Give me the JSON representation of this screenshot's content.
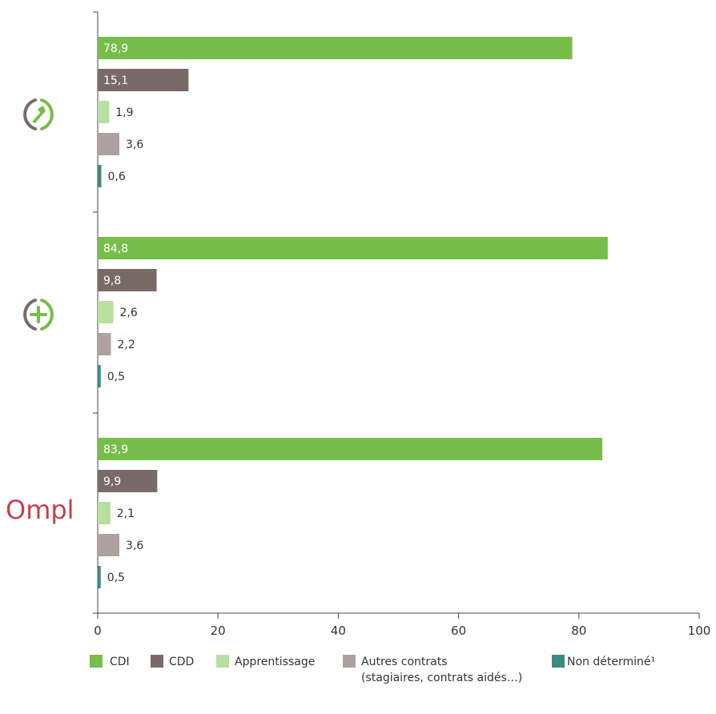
{
  "chart_data": {
    "type": "bar",
    "orientation": "horizontal",
    "groups": [
      {
        "icon": "tool-circle-icon"
      },
      {
        "icon": "plus-circle-icon"
      },
      {
        "icon": "ompl-logo",
        "logo_text": "Ompl"
      }
    ],
    "series": [
      {
        "name": "CDI",
        "color": "#76bd4a",
        "values": [
          78.9,
          84.8,
          83.9
        ],
        "labels": [
          "78,9",
          "84,8",
          "83,9"
        ]
      },
      {
        "name": "CDD",
        "color": "#7a6a67",
        "values": [
          15.1,
          9.8,
          9.9
        ],
        "labels": [
          "15,1",
          "9,8",
          "9,9"
        ]
      },
      {
        "name": "Apprentissage",
        "color": "#b7dfa0",
        "values": [
          1.9,
          2.6,
          2.1
        ],
        "labels": [
          "1,9",
          "2,6",
          "2,1"
        ]
      },
      {
        "name": "Autres contrats",
        "name_line2": "(stagiaires, contrats aidés…)",
        "color": "#ada19d",
        "values": [
          3.6,
          2.2,
          3.6
        ],
        "labels": [
          "3,6",
          "2,2",
          "3,6"
        ]
      },
      {
        "name": "Non déterminé¹",
        "color": "#3b8a7f",
        "values": [
          0.6,
          0.5,
          0.5
        ],
        "labels": [
          "0,6",
          "0,5",
          "0,5"
        ]
      }
    ],
    "xlim": [
      0,
      100
    ],
    "xticks": [
      0,
      20,
      40,
      60,
      80,
      100
    ],
    "grid": false,
    "legend_position": "bottom"
  }
}
